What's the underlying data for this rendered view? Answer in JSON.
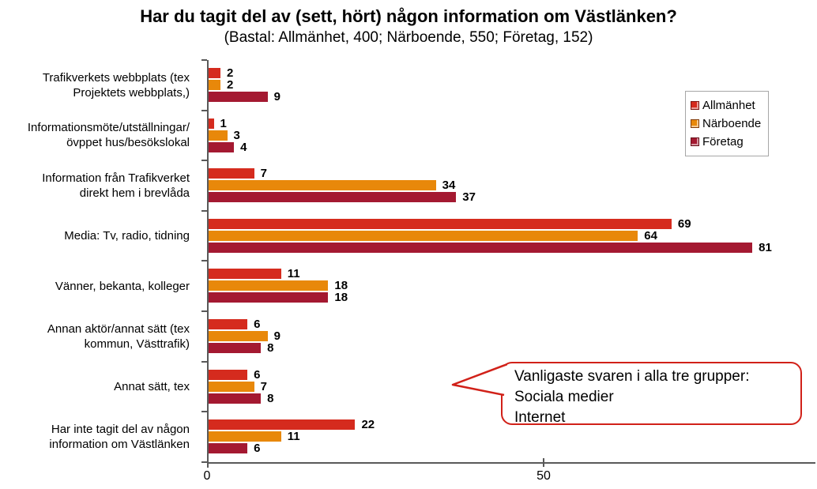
{
  "title": "Har du tagit del av (sett, hört) någon information om Västlänken?",
  "subtitle": "(Bastal: Allmänhet, 400; Närboende, 550; Företag, 152)",
  "chart_data": {
    "type": "bar",
    "orientation": "horizontal",
    "title": "Har du tagit del av (sett, hört) någon information om Västlänken?",
    "subtitle": "(Bastal: Allmänhet, 400; Närboende, 550; Företag, 152)",
    "categories": [
      "Trafikverkets webbplats (tex\nProjektets webbplats,)",
      "Informationsmöte/utställningar/\növppet hus/besökslokal",
      "Information från Trafikverket\ndirekt hem i brevlåda",
      "Media: Tv, radio, tidning",
      "Vänner, bekanta, kolleger",
      "Annan aktör/annat sätt (tex\nkommun, Västtrafik)",
      "Annat sätt, tex",
      "Har inte tagit del av någon\ninformation om Västlänken"
    ],
    "series": [
      {
        "name": "Allmänhet",
        "color": "#d52b1e",
        "values": [
          2,
          1,
          7,
          69,
          11,
          6,
          6,
          22
        ]
      },
      {
        "name": "Närboende",
        "color": "#e8880a",
        "values": [
          2,
          3,
          34,
          64,
          18,
          9,
          7,
          11
        ]
      },
      {
        "name": "Företag",
        "color": "#a41931",
        "values": [
          9,
          4,
          37,
          81,
          18,
          8,
          8,
          6
        ]
      }
    ],
    "xlim": [
      0,
      90
    ],
    "x_ticks": [
      0,
      50
    ],
    "grid": false,
    "value_labels": true,
    "legend_position": "top-right",
    "axis_color": "#595959"
  },
  "callout": {
    "lines": [
      "Vanligaste svaren i alla tre grupper:",
      "Sociala medier",
      "Internet"
    ],
    "border_color": "#d12119"
  }
}
